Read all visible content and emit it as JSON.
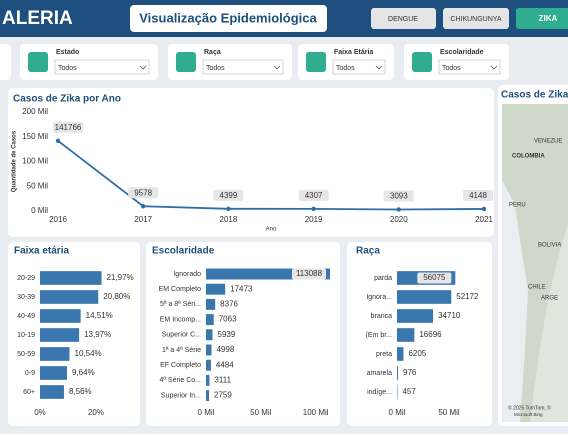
{
  "header": {
    "brand": "ALERIA",
    "title": "Visualização Epidemiológica",
    "buttons": [
      "DENGUE",
      "CHIKUNGUNYA",
      "ZIKA"
    ]
  },
  "filters": [
    {
      "label": "Estado",
      "value": "Todos"
    },
    {
      "label": "Raça",
      "value": "Todos"
    },
    {
      "label": "Faixa Etária",
      "value": "Todos"
    },
    {
      "label": "Escolaridade",
      "value": "Todos"
    }
  ],
  "map": {
    "title": "Casos de Zika",
    "labels": [
      "VENEZUE",
      "COLOMBIA",
      "PERU",
      "BOLIVIA",
      "CHILE",
      "ARGE"
    ],
    "credit": "© 2025 TomTom, ©",
    "brand": "Microsoft Bing"
  },
  "chart_data": [
    {
      "type": "line",
      "title": "Casos de Zika por Ano",
      "x_label": "Ano",
      "y_label": "Quantidade de Casos",
      "x": [
        2016,
        2017,
        2018,
        2019,
        2020,
        2021
      ],
      "xlim": [
        2016,
        2021
      ],
      "xticks": [
        2016,
        2017,
        2018,
        2019,
        2020,
        2021
      ],
      "series": [
        {
          "name": "Casos",
          "color": "#2f6ea5",
          "values": [
            141766,
            9578,
            4399,
            4307,
            3093,
            4148
          ]
        }
      ],
      "ylim": [
        0,
        200000
      ],
      "yticks": [
        {
          "value": 0,
          "label": "0 Mil"
        },
        {
          "value": 50000,
          "label": "50 Mil"
        },
        {
          "value": 100000,
          "label": "100 Mil"
        },
        {
          "value": 150000,
          "label": "150 Mil"
        },
        {
          "value": 200000,
          "label": "200 Mil"
        }
      ],
      "grid": false
    },
    {
      "type": "hbar",
      "title": "Faixa etária",
      "color": "#3a77ae",
      "categories": [
        "20-29",
        "30-39",
        "40-49",
        "10-19",
        "50-59",
        "0-9",
        "60+"
      ],
      "values": [
        21.97,
        20.8,
        14.51,
        13.97,
        10.54,
        9.64,
        8.56
      ],
      "value_labels": [
        "21,97%",
        "20,80%",
        "14,51%",
        "13,97%",
        "10,54%",
        "9,64%",
        "8,56%"
      ],
      "xlim": [
        0,
        25
      ],
      "xticks": [
        {
          "value": 0,
          "label": "0%"
        },
        {
          "value": 20,
          "label": "20%"
        }
      ]
    },
    {
      "type": "hbar",
      "title": "Escolaridade",
      "color": "#3a77ae",
      "categories": [
        "Ignorado",
        "EM Completo",
        "5ª a 8ª Séri...",
        "EM Incomp...",
        "Superior C...",
        "1ª a 4ª Série",
        "EF Completo",
        "4ª Série Co...",
        "Superior In..."
      ],
      "values": [
        113088,
        17473,
        8376,
        7063,
        5939,
        4998,
        4484,
        3111,
        2759
      ],
      "xlim": [
        0,
        113088
      ],
      "xticks": [
        {
          "value": 0,
          "label": "0 Mil"
        },
        {
          "value": 50000,
          "label": "50 Mil"
        },
        {
          "value": 100000,
          "label": "100 Mil"
        }
      ]
    },
    {
      "type": "hbar",
      "title": "Raça",
      "color": "#3a77ae",
      "categories": [
        "parda",
        "Ignora...",
        "branca",
        "(Em br...",
        "preta",
        "amarela",
        "indíge..."
      ],
      "values": [
        56075,
        52172,
        34710,
        16696,
        6205,
        976,
        457
      ],
      "xlim": [
        0,
        60000
      ],
      "xticks": [
        {
          "value": 0,
          "label": "0 Mil"
        },
        {
          "value": 50000,
          "label": "50 Mil"
        }
      ]
    }
  ]
}
